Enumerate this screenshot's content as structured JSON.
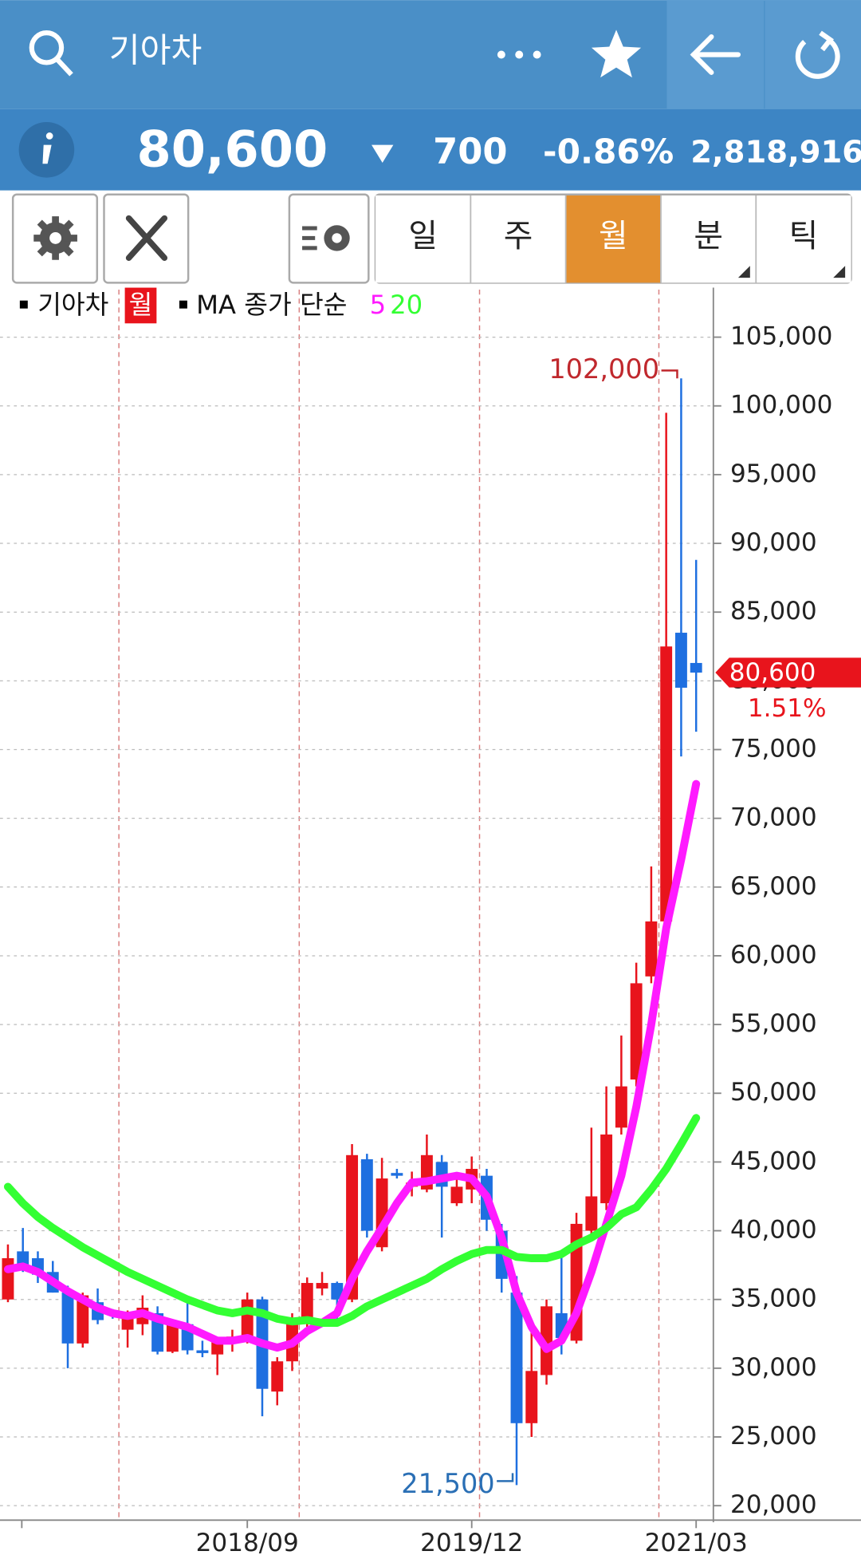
{
  "header": {
    "title": "기아차"
  },
  "quote": {
    "price": "80,600",
    "change": "700",
    "change_rate": "-0.86%",
    "volume": "2,818,916"
  },
  "period_tabs": [
    "일",
    "주",
    "월",
    "분",
    "틱"
  ],
  "chart_data": {
    "type": "candlestick",
    "legend_name": "기아차",
    "period_badge": "월",
    "ma_title": "MA 종가 단순",
    "up_color": "#e8141c",
    "down_color": "#1e6fe0",
    "categories": [
      null,
      null,
      null,
      null,
      null,
      null,
      null,
      null,
      null,
      null,
      null,
      null,
      null,
      null,
      null,
      null,
      "2018/09",
      null,
      null,
      null,
      null,
      null,
      null,
      null,
      null,
      null,
      null,
      null,
      null,
      null,
      null,
      "2019/12",
      null,
      null,
      null,
      null,
      null,
      null,
      null,
      null,
      null,
      null,
      null,
      null,
      null,
      null,
      "2021/03"
    ],
    "open": [
      35000,
      38500,
      38000,
      37000,
      35500,
      31800,
      34800,
      34000,
      32800,
      33200,
      34000,
      31200,
      33200,
      31300,
      31000,
      32000,
      32300,
      35000,
      28300,
      30500,
      33300,
      35800,
      36200,
      35000,
      45200,
      38800,
      44200,
      43200,
      43000,
      45000,
      42000,
      43000,
      44000,
      40000,
      35500,
      26000,
      29500,
      34000,
      32000,
      40000,
      42000,
      47500,
      51000,
      58500,
      62500,
      83500,
      81300
    ],
    "high": [
      39000,
      40200,
      38500,
      37800,
      36000,
      35500,
      35800,
      34300,
      34200,
      35300,
      34500,
      33400,
      34800,
      32000,
      32000,
      32800,
      35500,
      35200,
      30800,
      34000,
      36600,
      37000,
      36300,
      46300,
      45600,
      45300,
      44500,
      44300,
      47000,
      45500,
      44200,
      45400,
      44500,
      40500,
      36700,
      33000,
      35000,
      38300,
      41300,
      47500,
      50500,
      54200,
      59500,
      66500,
      99500,
      102000,
      88800
    ],
    "low": [
      34800,
      37000,
      36200,
      35500,
      30000,
      31500,
      33200,
      33600,
      31500,
      32400,
      31000,
      31100,
      31000,
      30800,
      29500,
      31200,
      31800,
      26500,
      27300,
      29800,
      33000,
      35300,
      33500,
      34800,
      39500,
      38500,
      43800,
      42500,
      42800,
      39500,
      41800,
      42000,
      40000,
      35500,
      21500,
      25000,
      28800,
      31000,
      31800,
      39500,
      41500,
      47000,
      50500,
      58000,
      62000,
      74500,
      76300
    ],
    "close": [
      38000,
      37500,
      36800,
      35500,
      31800,
      35300,
      33500,
      33900,
      34100,
      34400,
      31200,
      33200,
      31300,
      31100,
      32000,
      32300,
      35000,
      28500,
      30500,
      33300,
      36200,
      36200,
      35000,
      45500,
      40000,
      43800,
      44000,
      43500,
      45500,
      43200,
      43200,
      44500,
      40800,
      36500,
      26000,
      29800,
      34500,
      32200,
      40500,
      42500,
      47000,
      50500,
      58000,
      62500,
      82500,
      79500,
      80600
    ],
    "series": [
      {
        "name": "5",
        "color": "#ff1aff",
        "values": [
          37200,
          37400,
          37000,
          36300,
          35600,
          35000,
          34400,
          34000,
          33800,
          34000,
          33600,
          33300,
          33000,
          32500,
          32000,
          32000,
          32200,
          31800,
          31500,
          31800,
          32700,
          33300,
          34000,
          36500,
          38500,
          40200,
          42000,
          43500,
          43600,
          43800,
          44000,
          43800,
          42500,
          39500,
          35500,
          33000,
          31400,
          32000,
          34000,
          37000,
          40500,
          44000,
          49000,
          55000,
          62000,
          67000,
          72500
        ]
      },
      {
        "name": "20",
        "color": "#33ff33",
        "values": [
          43200,
          42000,
          41000,
          40200,
          39500,
          38800,
          38200,
          37600,
          37000,
          36500,
          36000,
          35500,
          35000,
          34600,
          34200,
          34000,
          34200,
          34000,
          33600,
          33400,
          33500,
          33300,
          33300,
          33800,
          34500,
          35000,
          35500,
          36000,
          36500,
          37200,
          37800,
          38300,
          38600,
          38600,
          38100,
          38000,
          38000,
          38300,
          39000,
          39500,
          40200,
          41200,
          41700,
          43000,
          44500,
          46300,
          48200
        ]
      }
    ],
    "annotations": [
      {
        "value": 102000,
        "label": "102,000"
      },
      {
        "value": 21500,
        "label": "21,500"
      }
    ],
    "last_price": {
      "value": 80600,
      "label": "80,600",
      "change_label": "1.51%"
    },
    "ylim": [
      18800,
      108600
    ],
    "yticks": [
      {
        "value": 20000,
        "label": "20,000"
      },
      {
        "value": 25000,
        "label": "25,000"
      },
      {
        "value": 30000,
        "label": "30,000"
      },
      {
        "value": 35000,
        "label": "35,000"
      },
      {
        "value": 40000,
        "label": "40,000"
      },
      {
        "value": 45000,
        "label": "45,000"
      },
      {
        "value": 50000,
        "label": "50,000"
      },
      {
        "value": 55000,
        "label": "55,000"
      },
      {
        "value": 60000,
        "label": "60,000"
      },
      {
        "value": 65000,
        "label": "65,000"
      },
      {
        "value": 70000,
        "label": "70,000"
      },
      {
        "value": 75000,
        "label": "75,000"
      },
      {
        "value": 80000,
        "label": "80,000"
      },
      {
        "value": 85000,
        "label": "85,000"
      },
      {
        "value": 90000,
        "label": "90,000"
      },
      {
        "value": 95000,
        "label": "95,000"
      },
      {
        "value": 100000,
        "label": "100,000"
      },
      {
        "value": 105000,
        "label": "105,000"
      }
    ],
    "grid": true
  }
}
